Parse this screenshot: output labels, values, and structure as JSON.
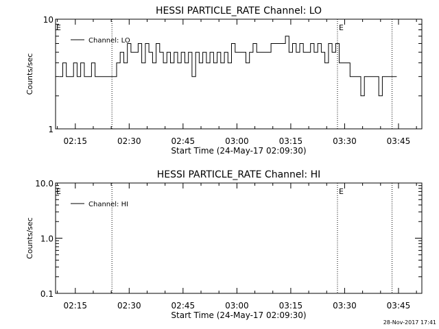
{
  "footer": {
    "timestamp": "28-Nov-2017 17:41"
  },
  "chart_data": [
    {
      "type": "line",
      "title": "HESSI PARTICLE_RATE Channel: LO",
      "xlabel": "Start Time (24-May-17 02:09:30)",
      "ylabel": "Counts/sec",
      "x_ticks": [
        "02:15",
        "02:30",
        "02:45",
        "03:00",
        "03:15",
        "03:30",
        "03:45"
      ],
      "x_tick_minutes": [
        15,
        30,
        45,
        60,
        75,
        90,
        105
      ],
      "xlim_minutes": [
        9.5,
        111.5
      ],
      "y_scale": "log",
      "ylim": [
        1,
        10
      ],
      "y_ticks": [
        "1",
        "10"
      ],
      "y_tick_values": [
        1,
        10
      ],
      "legend": {
        "entries": [
          "Channel: LO"
        ],
        "placement": "top-left"
      },
      "event_markers": [
        {
          "minute": 25.2,
          "label": "E"
        },
        {
          "minute": 88.0,
          "label": "E"
        },
        {
          "minute": 103.2,
          "label": ""
        }
      ],
      "series": [
        {
          "name": "Channel: LO",
          "x": [
            11,
            12,
            13,
            14,
            15,
            16,
            17,
            18,
            19,
            20,
            21,
            22,
            23,
            24,
            25,
            26,
            27,
            28,
            29,
            30,
            31,
            32,
            33,
            34,
            35,
            36,
            37,
            38,
            39,
            40,
            41,
            42,
            43,
            44,
            45,
            46,
            47,
            48,
            49,
            50,
            51,
            52,
            53,
            54,
            55,
            56,
            57,
            58,
            59,
            60,
            61,
            62,
            63,
            64,
            65,
            66,
            67,
            68,
            69,
            70,
            71,
            72,
            73,
            74,
            75,
            76,
            77,
            78,
            79,
            80,
            81,
            82,
            83,
            84,
            85,
            86,
            87,
            88,
            89,
            90,
            91,
            92,
            93,
            94,
            95,
            96,
            97,
            98,
            99,
            100,
            101,
            102,
            103,
            104
          ],
          "y": [
            3,
            4,
            3,
            3,
            4,
            3,
            4,
            3,
            3,
            4,
            3,
            3,
            3,
            3,
            3,
            3,
            4,
            5,
            4,
            6,
            5,
            5,
            6,
            4,
            6,
            5,
            4,
            6,
            5,
            4,
            5,
            4,
            5,
            4,
            5,
            4,
            5,
            3,
            5,
            4,
            5,
            4,
            5,
            4,
            5,
            4,
            5,
            4,
            6,
            5,
            5,
            5,
            4,
            5,
            6,
            5,
            5,
            5,
            5,
            6,
            6,
            6,
            6,
            7,
            5,
            6,
            5,
            6,
            5,
            5,
            6,
            5,
            6,
            5,
            4,
            6,
            5,
            6,
            4,
            4,
            4,
            3,
            3,
            3,
            2,
            3,
            3,
            3,
            3,
            2,
            3,
            3,
            3,
            3
          ]
        }
      ]
    },
    {
      "type": "line",
      "title": "HESSI PARTICLE_RATE Channel: HI",
      "xlabel": "Start Time (24-May-17 02:09:30)",
      "ylabel": "Counts/sec",
      "x_ticks": [
        "02:15",
        "02:30",
        "02:45",
        "03:00",
        "03:15",
        "03:30",
        "03:45"
      ],
      "x_tick_minutes": [
        15,
        30,
        45,
        60,
        75,
        90,
        105
      ],
      "xlim_minutes": [
        9.5,
        111.5
      ],
      "y_scale": "log",
      "ylim": [
        0.1,
        10
      ],
      "y_ticks": [
        "0.1",
        "1.0",
        "10.0"
      ],
      "y_tick_values": [
        0.1,
        1,
        10
      ],
      "legend": {
        "entries": [
          "Channel: HI"
        ],
        "placement": "top-left"
      },
      "event_markers": [
        {
          "minute": 25.2,
          "label": "E"
        },
        {
          "minute": 88.0,
          "label": "E"
        },
        {
          "minute": 103.2,
          "label": ""
        }
      ],
      "series": [
        {
          "name": "Channel: HI",
          "x": [],
          "y": []
        }
      ]
    }
  ]
}
